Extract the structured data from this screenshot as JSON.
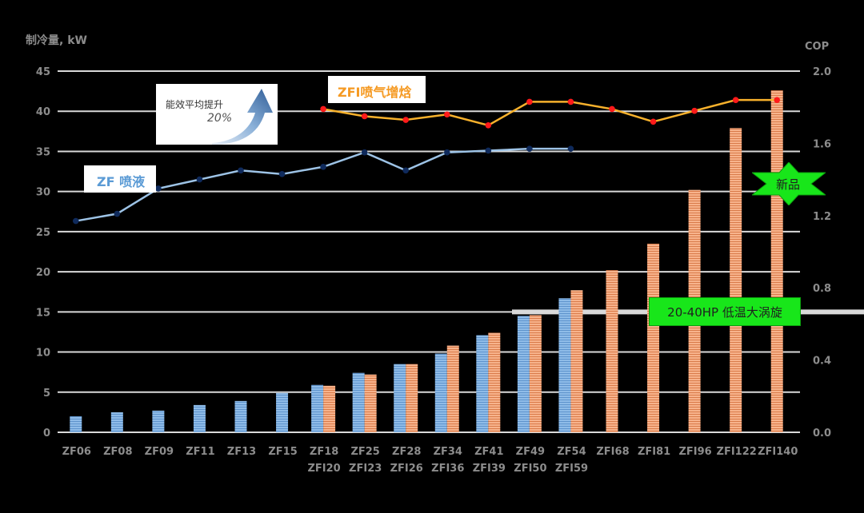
{
  "chart_data": {
    "type": "bar",
    "ylabel": "制冷量, kW",
    "y2label": "COP",
    "ylim": [
      0,
      45
    ],
    "y2lim": [
      0,
      2.0
    ],
    "yticks": [
      0,
      5,
      10,
      15,
      20,
      25,
      30,
      35,
      40,
      45
    ],
    "y2ticks": [
      "0.0",
      "0.4",
      "0.8",
      "1.2",
      "1.6",
      "2.0"
    ],
    "grid": true,
    "categories": [
      {
        "top": "ZF06",
        "bottom": ""
      },
      {
        "top": "ZF08",
        "bottom": ""
      },
      {
        "top": "ZF09",
        "bottom": ""
      },
      {
        "top": "ZF11",
        "bottom": ""
      },
      {
        "top": "ZF13",
        "bottom": ""
      },
      {
        "top": "ZF15",
        "bottom": ""
      },
      {
        "top": "ZF18",
        "bottom": "ZFI20"
      },
      {
        "top": "ZF25",
        "bottom": "ZFI23"
      },
      {
        "top": "ZF28",
        "bottom": "ZFI26"
      },
      {
        "top": "ZF34",
        "bottom": "ZFI36"
      },
      {
        "top": "ZF41",
        "bottom": "ZFI39"
      },
      {
        "top": "ZF49",
        "bottom": "ZFI50"
      },
      {
        "top": "ZF54",
        "bottom": "ZFI59"
      },
      {
        "top": "ZFI68",
        "bottom": ""
      },
      {
        "top": "ZFI81",
        "bottom": ""
      },
      {
        "top": "ZFI96",
        "bottom": ""
      },
      {
        "top": "ZFI122",
        "bottom": ""
      },
      {
        "top": "ZFI140",
        "bottom": ""
      }
    ],
    "series": [
      {
        "kind": "bar",
        "axis": "left",
        "color": "#7fb2e5",
        "values": [
          2.0,
          2.5,
          2.7,
          3.4,
          3.9,
          4.9,
          5.9,
          7.4,
          8.5,
          9.8,
          12.1,
          14.5,
          16.7,
          null,
          null,
          null,
          null,
          null
        ]
      },
      {
        "kind": "bar",
        "axis": "left",
        "color": "#f4a57a",
        "values": [
          null,
          null,
          null,
          null,
          null,
          null,
          5.8,
          7.2,
          8.5,
          10.8,
          12.4,
          14.6,
          17.7,
          20.2,
          23.5,
          30.2,
          37.9,
          42.6
        ]
      },
      {
        "kind": "line",
        "axis": "right",
        "color": "#9dc3e6",
        "marker": "#0f2a5c",
        "values": [
          1.17,
          1.21,
          1.35,
          1.4,
          1.45,
          1.43,
          1.47,
          1.55,
          1.45,
          1.55,
          1.56,
          1.57,
          1.57,
          null,
          null,
          null,
          null,
          null
        ]
      },
      {
        "kind": "line",
        "axis": "right",
        "color": "#f7b12c",
        "marker": "#ff1a1a",
        "values": [
          null,
          null,
          null,
          null,
          null,
          null,
          1.79,
          1.75,
          1.73,
          1.76,
          1.7,
          1.83,
          1.83,
          1.79,
          1.72,
          1.78,
          1.84,
          1.84
        ]
      }
    ]
  },
  "annotations": {
    "improve_label": "能效平均提升",
    "improve_pct": "20%",
    "zfi_label": "ZFI喷气增焓",
    "zf_label": "ZF 喷液",
    "new_label": "新品",
    "scroll_label": "20-40HP 低温大涡旋"
  },
  "colors": {
    "zfi_text": "#f59a23",
    "zf_text": "#5b9bd5",
    "green": "#18e61a"
  }
}
